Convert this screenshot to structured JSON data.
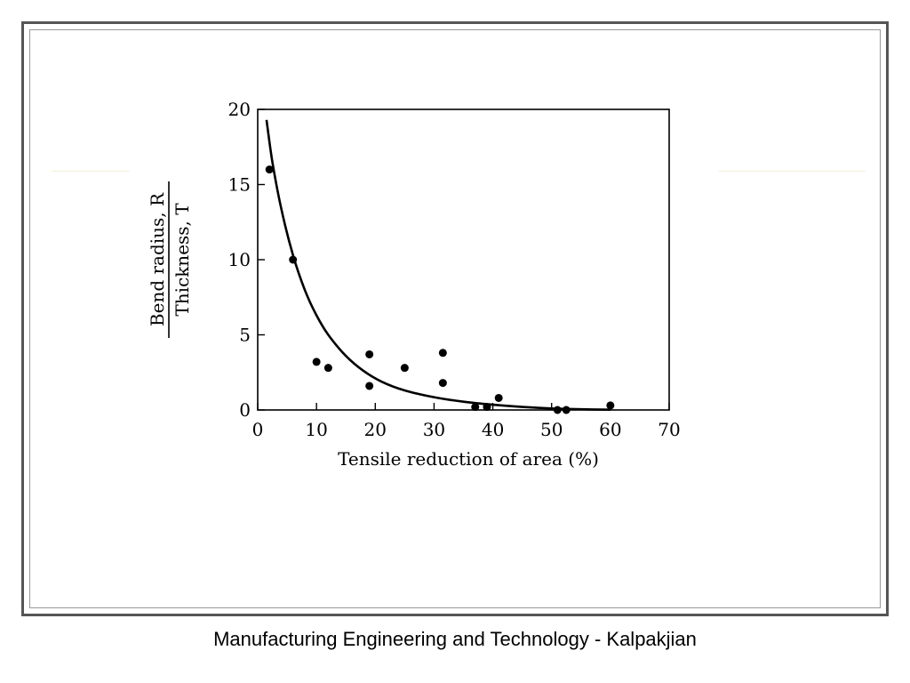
{
  "caption": "Manufacturing Engineering and Technology - Kalpakjian",
  "colors": {
    "frame": "#555555",
    "ink": "#000000",
    "background": "#ffffff"
  },
  "chart_data": {
    "type": "scatter",
    "title": "",
    "xlabel": "Tensile reduction of area (%)",
    "ylabel_top": "Bend radius, R",
    "ylabel_bottom": "Thickness, T",
    "xlim": [
      0,
      70
    ],
    "ylim": [
      0,
      20
    ],
    "x_ticks": [
      "0",
      "10",
      "20",
      "30",
      "40",
      "50",
      "60",
      "70"
    ],
    "y_ticks": [
      "0",
      "5",
      "10",
      "15",
      "20"
    ],
    "grid": false,
    "series": [
      {
        "values": [
          [
            2,
            16
          ],
          [
            6,
            10
          ],
          [
            10,
            3.2
          ],
          [
            12,
            2.8
          ],
          [
            19,
            3.7
          ],
          [
            19,
            1.6
          ],
          [
            25,
            2.8
          ],
          [
            31.5,
            3.8
          ],
          [
            31.5,
            1.8
          ],
          [
            37,
            0.2
          ],
          [
            39,
            0.2
          ],
          [
            41,
            0.8
          ],
          [
            51,
            0
          ],
          [
            52.5,
            0
          ],
          [
            60,
            0.3
          ]
        ]
      }
    ],
    "fit_curve": [
      [
        1.5,
        19.3
      ],
      [
        2.5,
        16.5
      ],
      [
        4,
        13.4
      ],
      [
        6,
        10.3
      ],
      [
        8,
        8.0
      ],
      [
        10,
        6.3
      ],
      [
        12,
        5.0
      ],
      [
        15,
        3.6
      ],
      [
        18,
        2.6
      ],
      [
        21,
        1.9
      ],
      [
        25,
        1.3
      ],
      [
        30,
        0.85
      ],
      [
        35,
        0.55
      ],
      [
        40,
        0.35
      ],
      [
        45,
        0.2
      ],
      [
        50,
        0.1
      ],
      [
        55,
        0.05
      ],
      [
        60,
        0.02
      ]
    ]
  }
}
